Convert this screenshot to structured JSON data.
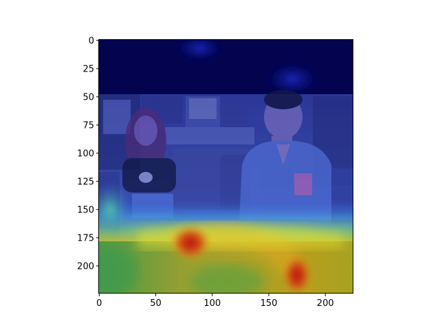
{
  "figure": {
    "x_ticks": [
      "0",
      "50",
      "100",
      "150",
      "200"
    ],
    "y_ticks": [
      "0",
      "25",
      "50",
      "75",
      "100",
      "125",
      "150",
      "175",
      "200"
    ]
  },
  "colors": {
    "background": "#ffffff",
    "axis": "#000000",
    "top_band": "#03034f",
    "image_tint": "#3b4db0",
    "heat_green": "#4c9c3d",
    "heat_yellow": "#b3a51c",
    "heat_red": "#c41414",
    "heat_cyan": "#3ec8c8"
  }
}
